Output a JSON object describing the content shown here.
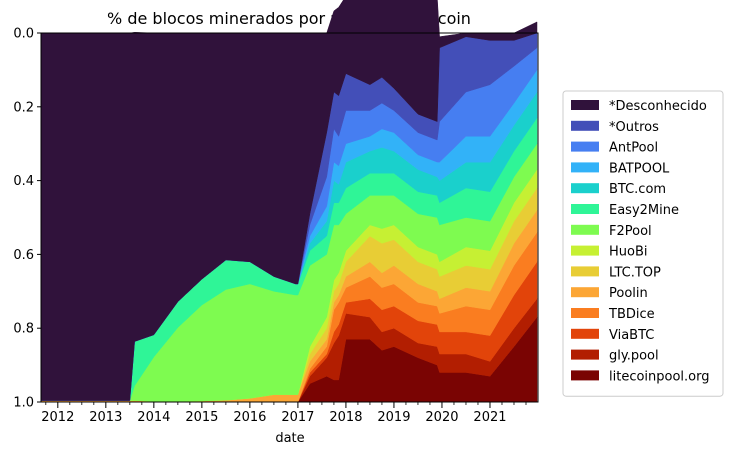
{
  "chart_data": {
    "type": "area",
    "stacked": true,
    "title": "% de blocos minerados por pools em Litecoin",
    "xlabel": "date",
    "ylabel": "",
    "y_inverted": true,
    "xlim": [
      2011.65,
      2022.0
    ],
    "ylim": [
      1.0,
      0.0
    ],
    "x_tick_labels": [
      "2012",
      "2013",
      "2014",
      "2015",
      "2016",
      "2017",
      "2018",
      "2019",
      "2020",
      "2021"
    ],
    "y_tick_labels": [
      "0.0",
      "0.2",
      "0.4",
      "0.6",
      "0.8",
      "1.0"
    ],
    "legend_position": "right",
    "x": [
      2011.65,
      2013.45,
      2013.5,
      2013.6,
      2014.0,
      2014.5,
      2015.0,
      2015.5,
      2016.0,
      2016.5,
      2016.95,
      2017.0,
      2017.25,
      2017.6,
      2017.75,
      2017.85,
      2018.0,
      2018.5,
      2018.75,
      2019.0,
      2019.5,
      2019.9,
      2019.95,
      2020.5,
      2021.0,
      2021.5,
      2021.98
    ],
    "series": [
      {
        "name": "litecoinpool.org",
        "color": "#7a0403",
        "values": [
          0.002,
          0.002,
          0.002,
          0.002,
          0,
          0,
          0,
          0,
          0,
          0,
          0,
          0,
          0.05,
          0.07,
          0.06,
          0.06,
          0.17,
          0.17,
          0.14,
          0.15,
          0.12,
          0.1,
          0.08,
          0.08,
          0.07,
          0.15,
          0.23
        ]
      },
      {
        "name": "gly.pool",
        "color": "#b21e01",
        "values": [
          0,
          0,
          0,
          0,
          0,
          0,
          0,
          0,
          0,
          0,
          0,
          0,
          0.02,
          0.05,
          0.1,
          0.12,
          0.07,
          0.06,
          0.05,
          0.05,
          0.04,
          0.05,
          0.05,
          0.05,
          0.04,
          0.05,
          0.05
        ]
      },
      {
        "name": "ViaBTC",
        "color": "#e2440a",
        "values": [
          0,
          0,
          0,
          0,
          0,
          0,
          0,
          0,
          0,
          0,
          0,
          0,
          0.01,
          0.01,
          0.03,
          0.03,
          0.03,
          0.05,
          0.06,
          0.06,
          0.06,
          0.06,
          0.06,
          0.06,
          0.07,
          0.09,
          0.1
        ]
      },
      {
        "name": "TBDice",
        "color": "#fa7d20",
        "values": [
          0,
          0,
          0,
          0,
          0,
          0,
          0,
          0,
          0,
          0,
          0,
          0,
          0.01,
          0.02,
          0.06,
          0.06,
          0.04,
          0.06,
          0.06,
          0.06,
          0.05,
          0.05,
          0.05,
          0.07,
          0.07,
          0.08,
          0.08
        ]
      },
      {
        "name": "Poolin",
        "color": "#fca635",
        "values": [
          0.002,
          0.002,
          0.002,
          0.002,
          0.002,
          0.002,
          0.003,
          0.005,
          0.01,
          0.02,
          0.02,
          0.02,
          0.02,
          0.02,
          0.02,
          0.02,
          0.03,
          0.04,
          0.04,
          0.05,
          0.05,
          0.04,
          0.04,
          0.05,
          0.05,
          0.06,
          0.06
        ]
      },
      {
        "name": "LTC.TOP",
        "color": "#e8cd35",
        "values": [
          0,
          0,
          0,
          0,
          0,
          0,
          0,
          0,
          0,
          0,
          0,
          0,
          0.02,
          0.03,
          0.03,
          0.03,
          0.04,
          0.07,
          0.08,
          0.07,
          0.06,
          0.06,
          0.06,
          0.06,
          0.06,
          0.06,
          0.06
        ]
      },
      {
        "name": "HuoBi",
        "color": "#c6f033",
        "values": [
          0,
          0,
          0,
          0,
          0,
          0,
          0,
          0,
          0,
          0,
          0,
          0,
          0.02,
          0.03,
          0.03,
          0.03,
          0.03,
          0.03,
          0.04,
          0.04,
          0.04,
          0.04,
          0.04,
          0.05,
          0.05,
          0.05,
          0.05
        ]
      },
      {
        "name": "F2Pool",
        "color": "#7efb50",
        "values": [
          0,
          0,
          0,
          0.04,
          0.12,
          0.2,
          0.26,
          0.3,
          0.31,
          0.28,
          0.27,
          0.27,
          0.22,
          0.17,
          0.15,
          0.13,
          0.1,
          0.08,
          0.09,
          0.08,
          0.09,
          0.1,
          0.1,
          0.08,
          0.08,
          0.07,
          0.07
        ]
      },
      {
        "name": "Easy2Mine",
        "color": "#2ff597",
        "values": [
          0,
          0,
          0,
          0.12,
          0.06,
          0.07,
          0.07,
          0.08,
          0.06,
          0.04,
          0.03,
          0.03,
          0.04,
          0.05,
          0.06,
          0.06,
          0.07,
          0.06,
          0.06,
          0.06,
          0.06,
          0.06,
          0.06,
          0.08,
          0.08,
          0.07,
          0.07
        ]
      },
      {
        "name": "BTC.com",
        "color": "#1ad0cc",
        "values": [
          0,
          0,
          0,
          0,
          0,
          0,
          0,
          0,
          0,
          0,
          0,
          0,
          0.02,
          0.04,
          0.06,
          0.05,
          0.07,
          0.06,
          0.07,
          0.06,
          0.06,
          0.05,
          0.06,
          0.07,
          0.08,
          0.07,
          0.07
        ]
      },
      {
        "name": "BATPOOL",
        "color": "#32b2f8",
        "values": [
          0,
          0,
          0,
          0,
          0,
          0,
          0,
          0,
          0,
          0,
          0,
          0,
          0.02,
          0.04,
          0.05,
          0.05,
          0.05,
          0.04,
          0.05,
          0.05,
          0.04,
          0.04,
          0.05,
          0.07,
          0.07,
          0.06,
          0.06
        ]
      },
      {
        "name": "AntPool",
        "color": "#467ef1",
        "values": [
          0,
          0,
          0,
          0,
          0,
          0,
          0,
          0,
          0,
          0,
          0,
          0,
          0.03,
          0.08,
          0.09,
          0.08,
          0.09,
          0.07,
          0.07,
          0.06,
          0.06,
          0.06,
          0.11,
          0.12,
          0.14,
          0.1,
          0.06
        ]
      },
      {
        "name": "*Outros",
        "color": "#434fb8",
        "values": [
          0,
          0,
          0,
          0,
          0,
          0,
          0,
          0,
          0,
          0,
          0,
          0,
          0.03,
          0.12,
          0.1,
          0.11,
          0.1,
          0.07,
          0.07,
          0.06,
          0.05,
          0.05,
          0.2,
          0.15,
          0.12,
          0.07,
          0.04
        ]
      },
      {
        "name": "*Desconhecido",
        "color": "#30123b",
        "values": [
          0.996,
          0.996,
          0.996,
          0.838,
          0.818,
          0.728,
          0.667,
          0.615,
          0.62,
          0.66,
          0.68,
          0.68,
          0.49,
          0.27,
          0.22,
          0.24,
          0.21,
          0.24,
          0.21,
          0.25,
          0.32,
          0.34,
          0.03,
          0.01,
          0.02,
          0.02,
          0.03
        ]
      }
    ]
  }
}
